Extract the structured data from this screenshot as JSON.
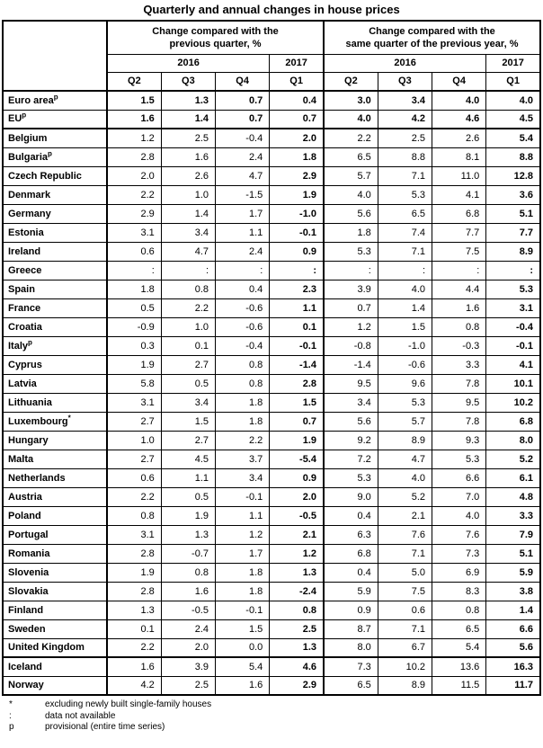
{
  "title": "Quarterly and annual changes in house prices",
  "chart_data": {
    "type": "table",
    "title": "Quarterly and annual changes in house prices",
    "column_groups": [
      {
        "label": "Change compared with the\nprevious quarter, %",
        "years": [
          "2016",
          "2017"
        ],
        "quarters": [
          "Q2",
          "Q3",
          "Q4",
          "Q1"
        ]
      },
      {
        "label": "Change compared with the\nsame quarter of the previous year, %",
        "years": [
          "2016",
          "2017"
        ],
        "quarters": [
          "Q2",
          "Q3",
          "Q4",
          "Q1"
        ]
      }
    ],
    "rows": [
      {
        "label": "Euro area",
        "sup": "p",
        "bold_all": true,
        "values": [
          "1.5",
          "1.3",
          "0.7",
          "0.4",
          "3.0",
          "3.4",
          "4.0",
          "4.0"
        ]
      },
      {
        "label": "EU",
        "sup": "p",
        "bold_all": true,
        "separator_after": true,
        "values": [
          "1.6",
          "1.4",
          "0.7",
          "0.7",
          "4.0",
          "4.2",
          "4.6",
          "4.5"
        ]
      },
      {
        "label": "Belgium",
        "values": [
          "1.2",
          "2.5",
          "-0.4",
          "2.0",
          "2.2",
          "2.5",
          "2.6",
          "5.4"
        ]
      },
      {
        "label": "Bulgaria",
        "sup": "p",
        "values": [
          "2.8",
          "1.6",
          "2.4",
          "1.8",
          "6.5",
          "8.8",
          "8.1",
          "8.8"
        ]
      },
      {
        "label": "Czech Republic",
        "values": [
          "2.0",
          "2.6",
          "4.7",
          "2.9",
          "5.7",
          "7.1",
          "11.0",
          "12.8"
        ]
      },
      {
        "label": "Denmark",
        "values": [
          "2.2",
          "1.0",
          "-1.5",
          "1.9",
          "4.0",
          "5.3",
          "4.1",
          "3.6"
        ]
      },
      {
        "label": "Germany",
        "values": [
          "2.9",
          "1.4",
          "1.7",
          "-1.0",
          "5.6",
          "6.5",
          "6.8",
          "5.1"
        ]
      },
      {
        "label": "Estonia",
        "values": [
          "3.1",
          "3.4",
          "1.1",
          "-0.1",
          "1.8",
          "7.4",
          "7.7",
          "7.7"
        ]
      },
      {
        "label": "Ireland",
        "values": [
          "0.6",
          "4.7",
          "2.4",
          "0.9",
          "5.3",
          "7.1",
          "7.5",
          "8.9"
        ]
      },
      {
        "label": "Greece",
        "values": [
          ":",
          ":",
          ":",
          ":",
          ":",
          ":",
          ":",
          ":"
        ]
      },
      {
        "label": "Spain",
        "values": [
          "1.8",
          "0.8",
          "0.4",
          "2.3",
          "3.9",
          "4.0",
          "4.4",
          "5.3"
        ]
      },
      {
        "label": "France",
        "values": [
          "0.5",
          "2.2",
          "-0.6",
          "1.1",
          "0.7",
          "1.4",
          "1.6",
          "3.1"
        ]
      },
      {
        "label": "Croatia",
        "values": [
          "-0.9",
          "1.0",
          "-0.6",
          "0.1",
          "1.2",
          "1.5",
          "0.8",
          "-0.4"
        ]
      },
      {
        "label": "Italy",
        "sup": "p",
        "values": [
          "0.3",
          "0.1",
          "-0.4",
          "-0.1",
          "-0.8",
          "-1.0",
          "-0.3",
          "-0.1"
        ]
      },
      {
        "label": "Cyprus",
        "values": [
          "1.9",
          "2.7",
          "0.8",
          "-1.4",
          "-1.4",
          "-0.6",
          "3.3",
          "4.1"
        ]
      },
      {
        "label": "Latvia",
        "values": [
          "5.8",
          "0.5",
          "0.8",
          "2.8",
          "9.5",
          "9.6",
          "7.8",
          "10.1"
        ]
      },
      {
        "label": "Lithuania",
        "values": [
          "3.1",
          "3.4",
          "1.8",
          "1.5",
          "3.4",
          "5.3",
          "9.5",
          "10.2"
        ]
      },
      {
        "label": "Luxembourg",
        "sup": "*",
        "values": [
          "2.7",
          "1.5",
          "1.8",
          "0.7",
          "5.6",
          "5.7",
          "7.8",
          "6.8"
        ]
      },
      {
        "label": "Hungary",
        "values": [
          "1.0",
          "2.7",
          "2.2",
          "1.9",
          "9.2",
          "8.9",
          "9.3",
          "8.0"
        ]
      },
      {
        "label": "Malta",
        "values": [
          "2.7",
          "4.5",
          "3.7",
          "-5.4",
          "7.2",
          "4.7",
          "5.3",
          "5.2"
        ]
      },
      {
        "label": "Netherlands",
        "values": [
          "0.6",
          "1.1",
          "3.4",
          "0.9",
          "5.3",
          "4.0",
          "6.6",
          "6.1"
        ]
      },
      {
        "label": "Austria",
        "values": [
          "2.2",
          "0.5",
          "-0.1",
          "2.0",
          "9.0",
          "5.2",
          "7.0",
          "4.8"
        ]
      },
      {
        "label": "Poland",
        "values": [
          "0.8",
          "1.9",
          "1.1",
          "-0.5",
          "0.4",
          "2.1",
          "4.0",
          "3.3"
        ]
      },
      {
        "label": "Portugal",
        "values": [
          "3.1",
          "1.3",
          "1.2",
          "2.1",
          "6.3",
          "7.6",
          "7.6",
          "7.9"
        ]
      },
      {
        "label": "Romania",
        "values": [
          "2.8",
          "-0.7",
          "1.7",
          "1.2",
          "6.8",
          "7.1",
          "7.3",
          "5.1"
        ]
      },
      {
        "label": "Slovenia",
        "values": [
          "1.9",
          "0.8",
          "1.8",
          "1.3",
          "0.4",
          "5.0",
          "6.9",
          "5.9"
        ]
      },
      {
        "label": "Slovakia",
        "values": [
          "2.8",
          "1.6",
          "1.8",
          "-2.4",
          "5.9",
          "7.5",
          "8.3",
          "3.8"
        ]
      },
      {
        "label": "Finland",
        "values": [
          "1.3",
          "-0.5",
          "-0.1",
          "0.8",
          "0.9",
          "0.6",
          "0.8",
          "1.4"
        ]
      },
      {
        "label": "Sweden",
        "values": [
          "0.1",
          "2.4",
          "1.5",
          "2.5",
          "8.7",
          "7.1",
          "6.5",
          "6.6"
        ]
      },
      {
        "label": "United Kingdom",
        "separator_after": true,
        "values": [
          "2.2",
          "2.0",
          "0.0",
          "1.3",
          "8.0",
          "6.7",
          "5.4",
          "5.6"
        ]
      },
      {
        "label": "Iceland",
        "values": [
          "1.6",
          "3.9",
          "5.4",
          "4.6",
          "7.3",
          "10.2",
          "13.6",
          "16.3"
        ]
      },
      {
        "label": "Norway",
        "values": [
          "4.2",
          "2.5",
          "1.6",
          "2.9",
          "6.5",
          "8.9",
          "11.5",
          "11.7"
        ]
      }
    ]
  },
  "footnotes": [
    {
      "marker": "*",
      "text": "excluding newly built single-family houses"
    },
    {
      "marker": ":",
      "text": "data not available"
    },
    {
      "marker": "p",
      "text": "provisional (entire time series)"
    }
  ]
}
